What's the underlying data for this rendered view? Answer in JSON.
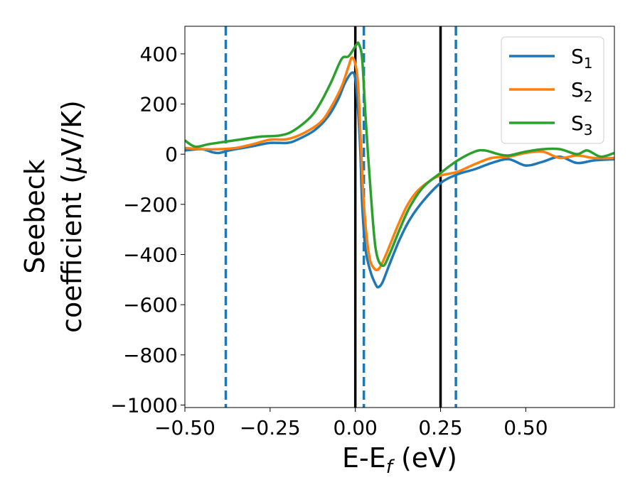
{
  "chart_data": {
    "type": "line",
    "xlabel": "E-E",
    "xlabel_sub": "f",
    "xlabel_unit": " (eV)",
    "ylabel_line1": "Seebeck",
    "ylabel_line2": "coefficient  (",
    "ylabel_mu": "μ",
    "ylabel_unit": "V/K)",
    "xlim": [
      -0.5,
      0.76
    ],
    "ylim": [
      -1010,
      510
    ],
    "xticks": [
      -0.5,
      -0.25,
      0.0,
      0.25,
      0.5
    ],
    "xtick_labels": [
      "−0.50",
      "−0.25",
      "0.00",
      "0.25",
      "0.50"
    ],
    "yticks": [
      400,
      200,
      0,
      -200,
      -400,
      -600,
      -800,
      -1000
    ],
    "ytick_labels": [
      "400",
      "200",
      "0",
      "−200",
      "−400",
      "−600",
      "−800",
      "−1000"
    ],
    "grid": false,
    "legend_position": "top-right",
    "series": [
      {
        "name": "S",
        "name_sub": "1",
        "color": "#1f77b4",
        "points": [
          [
            -0.5,
            15
          ],
          [
            -0.45,
            20
          ],
          [
            -0.42,
            8
          ],
          [
            -0.4,
            5
          ],
          [
            -0.37,
            15
          ],
          [
            -0.33,
            25
          ],
          [
            -0.3,
            32
          ],
          [
            -0.25,
            45
          ],
          [
            -0.2,
            45
          ],
          [
            -0.17,
            58
          ],
          [
            -0.12,
            95
          ],
          [
            -0.08,
            150
          ],
          [
            -0.05,
            220
          ],
          [
            -0.03,
            285
          ],
          [
            -0.01,
            325
          ],
          [
            0.0,
            300
          ],
          [
            0.008,
            180
          ],
          [
            0.015,
            0
          ],
          [
            0.02,
            -200
          ],
          [
            0.03,
            -380
          ],
          [
            0.045,
            -470
          ],
          [
            0.06,
            -520
          ],
          [
            0.068,
            -530
          ],
          [
            0.08,
            -510
          ],
          [
            0.1,
            -440
          ],
          [
            0.13,
            -340
          ],
          [
            0.16,
            -260
          ],
          [
            0.2,
            -185
          ],
          [
            0.25,
            -115
          ],
          [
            0.3,
            -80
          ],
          [
            0.35,
            -60
          ],
          [
            0.4,
            -35
          ],
          [
            0.45,
            -20
          ],
          [
            0.5,
            -45
          ],
          [
            0.55,
            -30
          ],
          [
            0.6,
            -10
          ],
          [
            0.65,
            -35
          ],
          [
            0.7,
            -25
          ],
          [
            0.76,
            -20
          ]
        ]
      },
      {
        "name": "S",
        "name_sub": "2",
        "color": "#ff7f0e",
        "points": [
          [
            -0.5,
            25
          ],
          [
            -0.45,
            20
          ],
          [
            -0.4,
            20
          ],
          [
            -0.35,
            25
          ],
          [
            -0.3,
            40
          ],
          [
            -0.25,
            58
          ],
          [
            -0.2,
            60
          ],
          [
            -0.15,
            85
          ],
          [
            -0.1,
            130
          ],
          [
            -0.07,
            190
          ],
          [
            -0.04,
            270
          ],
          [
            -0.02,
            350
          ],
          [
            -0.01,
            385
          ],
          [
            0.0,
            360
          ],
          [
            0.008,
            280
          ],
          [
            0.015,
            80
          ],
          [
            0.025,
            -200
          ],
          [
            0.04,
            -400
          ],
          [
            0.055,
            -455
          ],
          [
            0.07,
            -455
          ],
          [
            0.09,
            -400
          ],
          [
            0.12,
            -300
          ],
          [
            0.15,
            -210
          ],
          [
            0.18,
            -150
          ],
          [
            0.22,
            -105
          ],
          [
            0.25,
            -85
          ],
          [
            0.3,
            -70
          ],
          [
            0.35,
            -40
          ],
          [
            0.4,
            -15
          ],
          [
            0.45,
            -10
          ],
          [
            0.5,
            5
          ],
          [
            0.55,
            10
          ],
          [
            0.6,
            -15
          ],
          [
            0.65,
            -5
          ],
          [
            0.7,
            -15
          ],
          [
            0.76,
            -15
          ]
        ]
      },
      {
        "name": "S",
        "name_sub": "3",
        "color": "#2ca02c",
        "points": [
          [
            -0.5,
            55
          ],
          [
            -0.47,
            30
          ],
          [
            -0.43,
            40
          ],
          [
            -0.38,
            50
          ],
          [
            -0.33,
            60
          ],
          [
            -0.28,
            70
          ],
          [
            -0.22,
            75
          ],
          [
            -0.18,
            95
          ],
          [
            -0.13,
            150
          ],
          [
            -0.1,
            210
          ],
          [
            -0.07,
            290
          ],
          [
            -0.04,
            380
          ],
          [
            -0.02,
            390
          ],
          [
            0.0,
            430
          ],
          [
            0.005,
            440
          ],
          [
            0.01,
            440
          ],
          [
            0.02,
            380
          ],
          [
            0.03,
            150
          ],
          [
            0.045,
            -150
          ],
          [
            0.06,
            -380
          ],
          [
            0.08,
            -445
          ],
          [
            0.1,
            -400
          ],
          [
            0.13,
            -300
          ],
          [
            0.16,
            -210
          ],
          [
            0.2,
            -130
          ],
          [
            0.25,
            -75
          ],
          [
            0.3,
            -25
          ],
          [
            0.35,
            10
          ],
          [
            0.38,
            15
          ],
          [
            0.42,
            0
          ],
          [
            0.45,
            -5
          ],
          [
            0.5,
            10
          ],
          [
            0.55,
            20
          ],
          [
            0.6,
            20
          ],
          [
            0.65,
            0
          ],
          [
            0.68,
            15
          ],
          [
            0.72,
            -10
          ],
          [
            0.76,
            5
          ]
        ]
      }
    ],
    "vlines_solid": [
      0.0,
      0.25
    ],
    "vlines_dashed": [
      -0.38,
      0.025,
      0.295
    ],
    "vline_solid_color": "#000000",
    "vline_dashed_color": "#1f77b4"
  }
}
